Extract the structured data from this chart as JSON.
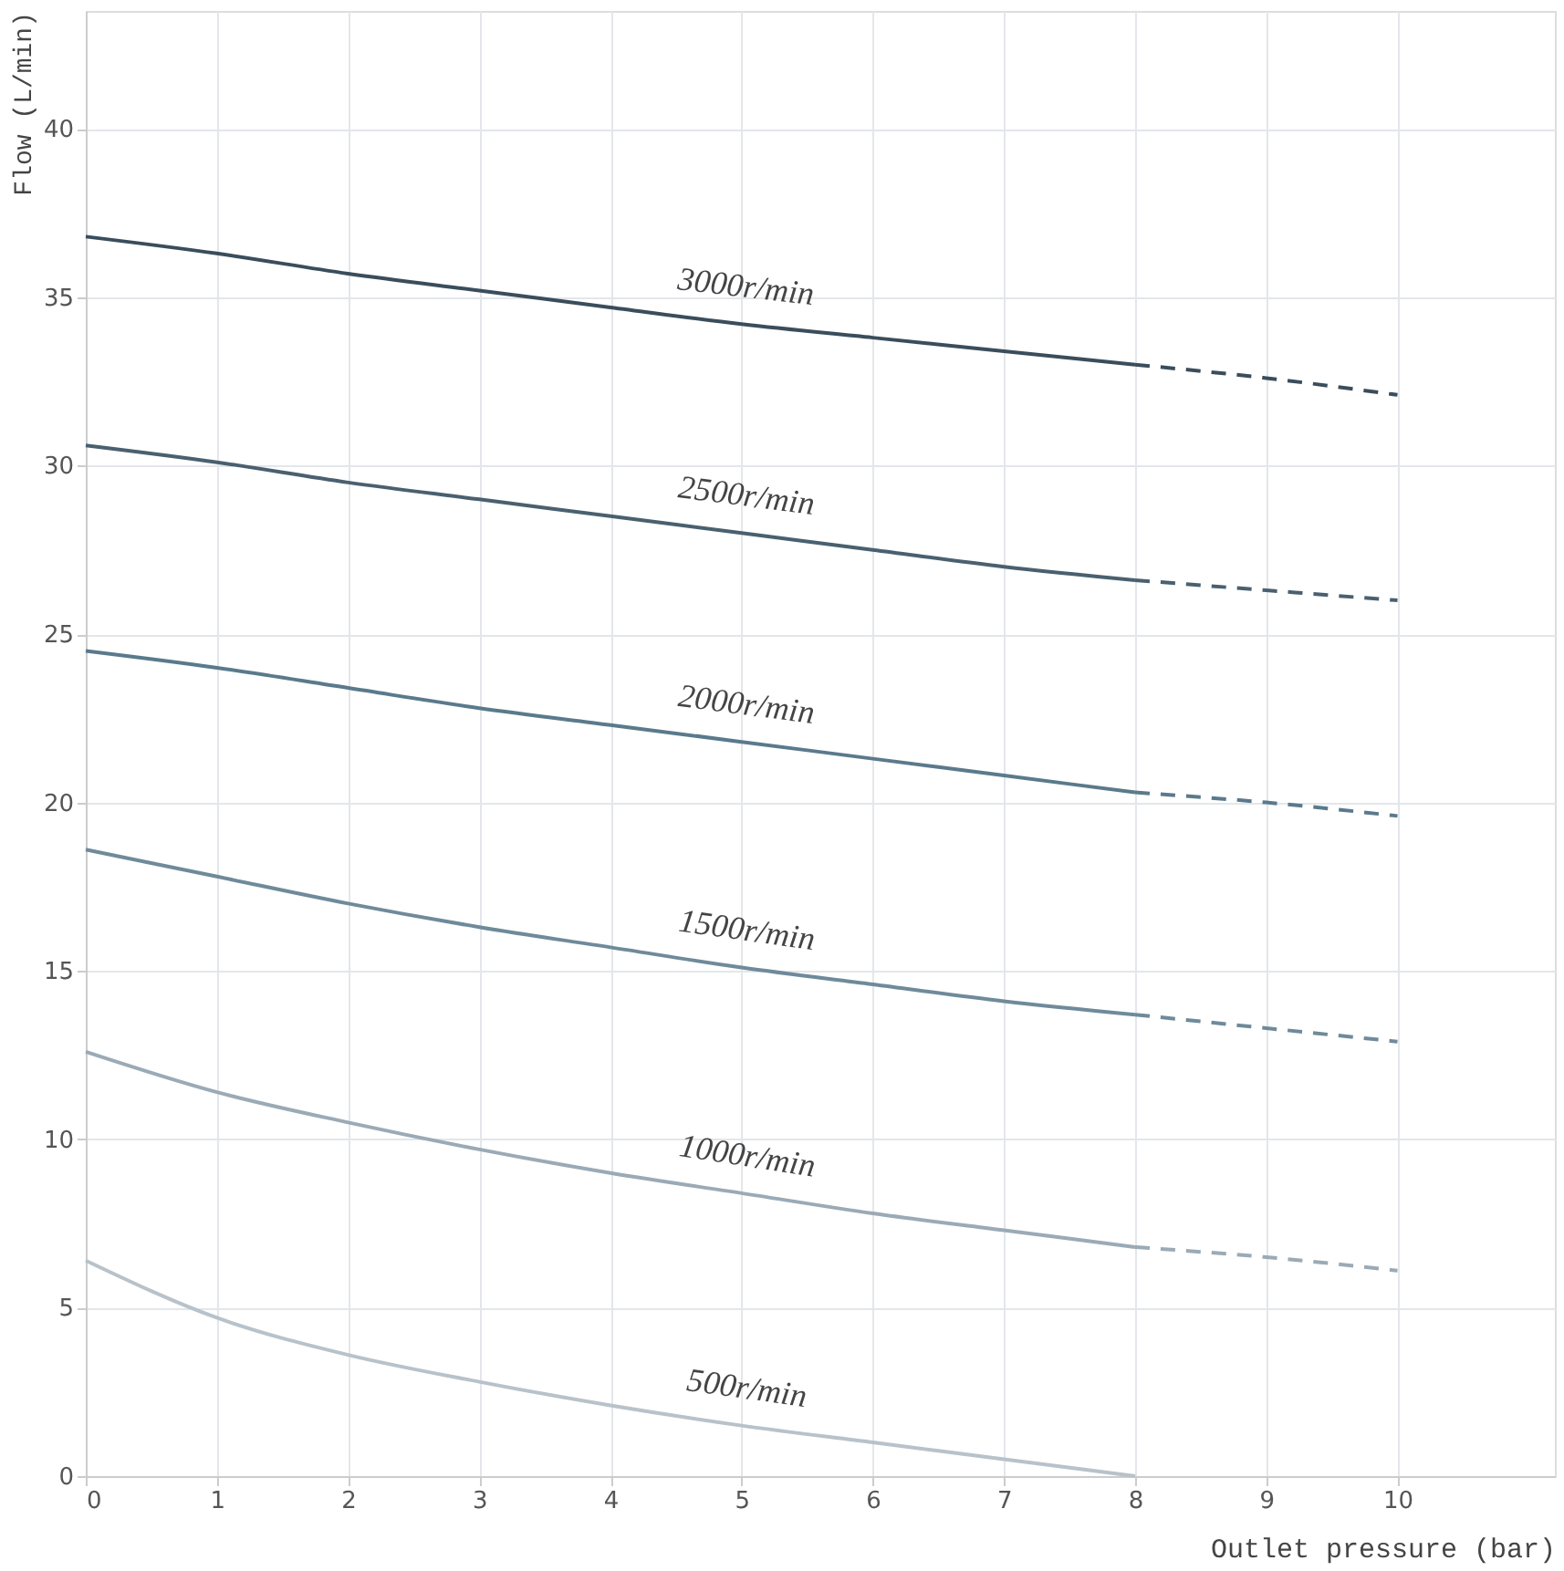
{
  "chart_data": {
    "type": "line",
    "xlabel": "Outlet pressure (bar)",
    "ylabel": "Flow (L/min)",
    "xlim": [
      0,
      11.2
    ],
    "ylim": [
      0,
      43.5
    ],
    "xticks": [
      0,
      1,
      2,
      3,
      4,
      5,
      6,
      7,
      8,
      9,
      10
    ],
    "yticks": [
      0,
      5,
      10,
      15,
      20,
      25,
      30,
      35,
      40
    ],
    "grid": true,
    "marker": "none",
    "series": [
      {
        "name": "3000r/min",
        "color": "#3a4d5c",
        "line_style": "solid",
        "x": [
          0,
          1,
          2,
          3,
          4,
          5,
          6,
          7,
          8
        ],
        "values": [
          36.8,
          36.3,
          35.7,
          35.2,
          34.7,
          34.2,
          33.8,
          33.4,
          33.0
        ]
      },
      {
        "color": "#3a4d5c",
        "line_style": "dashed",
        "x": [
          8,
          9,
          10
        ],
        "values": [
          33.0,
          32.6,
          32.1
        ]
      },
      {
        "name": "2500r/min",
        "color": "#4a6070",
        "line_style": "solid",
        "x": [
          0,
          1,
          2,
          3,
          4,
          5,
          6,
          7,
          8
        ],
        "values": [
          30.6,
          30.1,
          29.5,
          29.0,
          28.5,
          28.0,
          27.5,
          27.0,
          26.6
        ]
      },
      {
        "color": "#4a6070",
        "line_style": "dashed",
        "x": [
          8,
          9,
          10
        ],
        "values": [
          26.6,
          26.3,
          26.0
        ]
      },
      {
        "name": "2000r/min",
        "color": "#5a7a8c",
        "line_style": "solid",
        "x": [
          0,
          1,
          2,
          3,
          4,
          5,
          6,
          7,
          8
        ],
        "values": [
          24.5,
          24.0,
          23.4,
          22.8,
          22.3,
          21.8,
          21.3,
          20.8,
          20.3
        ]
      },
      {
        "color": "#5a7a8c",
        "line_style": "dashed",
        "x": [
          8,
          9,
          10
        ],
        "values": [
          20.3,
          20.0,
          19.6
        ]
      },
      {
        "name": "1500r/min",
        "color": "#6f8a9a",
        "line_style": "solid",
        "x": [
          0,
          1,
          2,
          3,
          4,
          5,
          6,
          7,
          8
        ],
        "values": [
          18.6,
          17.8,
          17.0,
          16.3,
          15.7,
          15.1,
          14.6,
          14.1,
          13.7
        ]
      },
      {
        "color": "#6f8a9a",
        "line_style": "dashed",
        "x": [
          8,
          9,
          10
        ],
        "values": [
          13.7,
          13.3,
          12.9
        ]
      },
      {
        "name": "1000r/min",
        "color": "#9aaab6",
        "line_style": "solid",
        "x": [
          0,
          1,
          2,
          3,
          4,
          5,
          6,
          7,
          8
        ],
        "values": [
          12.6,
          11.4,
          10.5,
          9.7,
          9.0,
          8.4,
          7.8,
          7.3,
          6.8
        ]
      },
      {
        "color": "#9aaab6",
        "line_style": "dashed",
        "x": [
          8,
          9,
          10
        ],
        "values": [
          6.8,
          6.5,
          6.1
        ]
      },
      {
        "name": "500r/min",
        "color": "#b8c2ca",
        "line_style": "solid",
        "x": [
          0,
          1,
          2,
          3,
          4,
          5,
          6,
          7,
          8
        ],
        "values": [
          6.4,
          4.7,
          3.6,
          2.8,
          2.1,
          1.5,
          1.0,
          0.5,
          0.0
        ]
      }
    ]
  }
}
